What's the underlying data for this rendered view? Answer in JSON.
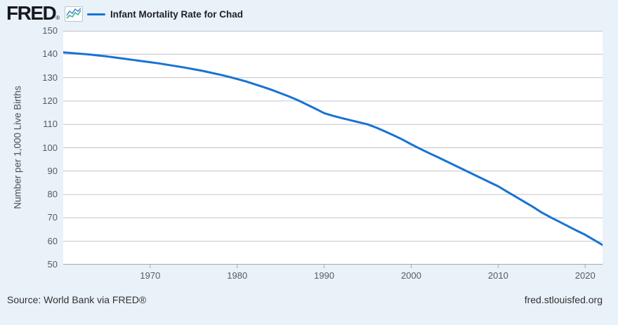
{
  "header": {
    "logo_text": "FRED",
    "logo_registered": "®",
    "legend": {
      "series_label": "Infant Mortality Rate for Chad",
      "series_color": "#1873d3"
    }
  },
  "chart_data": {
    "type": "line",
    "title": "Infant Mortality Rate for Chad",
    "ylabel": "Number per 1,000 Live Births",
    "xlabel": "",
    "ylim": [
      50,
      150
    ],
    "x_range": [
      1960,
      2022
    ],
    "y_ticks": [
      50,
      60,
      70,
      80,
      90,
      100,
      110,
      120,
      130,
      140,
      150
    ],
    "x_ticks": [
      1970,
      1980,
      1990,
      2000,
      2010,
      2020
    ],
    "grid": "horizontal",
    "legend_position": "top-left",
    "line_color": "#1873d3",
    "grid_color": "#c3c4c6",
    "axis_color": "#a8aaac",
    "plot_background": "#ffffff",
    "page_background": "#e9f1f9",
    "x": [
      1960,
      1961,
      1962,
      1963,
      1964,
      1965,
      1966,
      1967,
      1968,
      1969,
      1970,
      1971,
      1972,
      1973,
      1974,
      1975,
      1976,
      1977,
      1978,
      1979,
      1980,
      1981,
      1982,
      1983,
      1984,
      1985,
      1986,
      1987,
      1988,
      1989,
      1990,
      1991,
      1992,
      1993,
      1994,
      1995,
      1996,
      1997,
      1998,
      1999,
      2000,
      2001,
      2002,
      2003,
      2004,
      2005,
      2006,
      2007,
      2008,
      2009,
      2010,
      2011,
      2012,
      2013,
      2014,
      2015,
      2016,
      2017,
      2018,
      2019,
      2020,
      2021,
      2022
    ],
    "values": [
      140.8,
      140.5,
      140.2,
      139.9,
      139.5,
      139.1,
      138.6,
      138.1,
      137.6,
      137.1,
      136.6,
      136.1,
      135.5,
      134.9,
      134.3,
      133.6,
      132.9,
      132.1,
      131.3,
      130.4,
      129.4,
      128.4,
      127.2,
      126.0,
      124.7,
      123.3,
      121.9,
      120.3,
      118.5,
      116.7,
      114.8,
      113.7,
      112.7,
      111.8,
      110.9,
      110.0,
      108.6,
      107.0,
      105.3,
      103.5,
      101.5,
      99.6,
      97.8,
      96.1,
      94.3,
      92.5,
      90.7,
      88.9,
      87.1,
      85.3,
      83.5,
      81.3,
      79.1,
      76.9,
      74.7,
      72.3,
      70.3,
      68.4,
      66.5,
      64.6,
      62.8,
      60.6,
      58.4
    ]
  },
  "footer": {
    "source": "Source: World Bank via FRED®",
    "site": "fred.stlouisfed.org"
  }
}
